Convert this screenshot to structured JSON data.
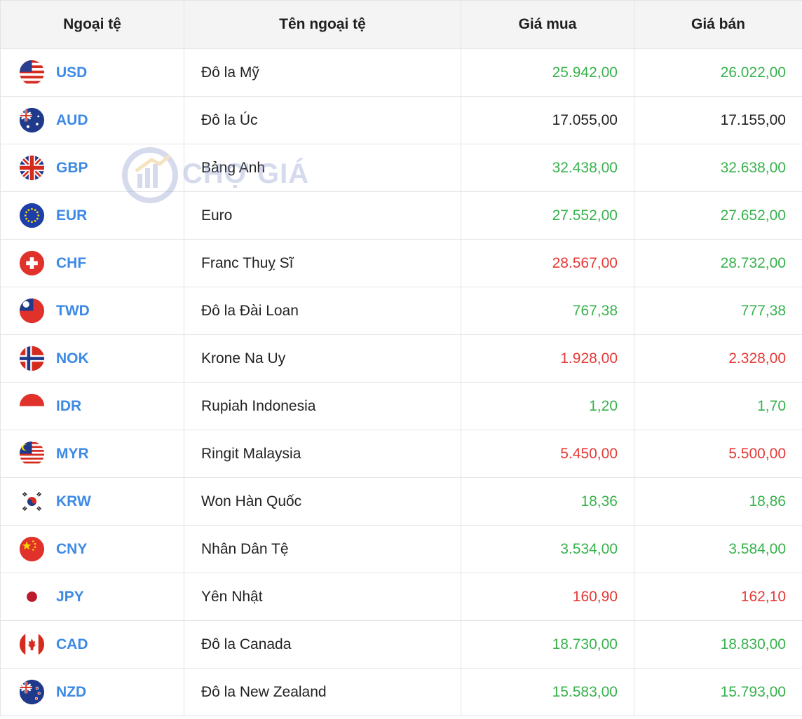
{
  "header": {
    "col_code": "Ngoại tệ",
    "col_name": "Tên ngoại tệ",
    "col_buy": "Giá mua",
    "col_sell": "Giá bán"
  },
  "watermark": {
    "text": "CHỢ GIÁ"
  },
  "status_colors": {
    "up": "#37b24d",
    "down": "#e53935",
    "neutral": "#222222",
    "code": "#3d8ae6"
  },
  "rows": [
    {
      "code": "USD",
      "name": "Đô la Mỹ",
      "buy": "25.942,00",
      "sell": "26.022,00",
      "buy_status": "green",
      "sell_status": "green",
      "flag": "us-flag-icon"
    },
    {
      "code": "AUD",
      "name": "Đô la Úc",
      "buy": "17.055,00",
      "sell": "17.155,00",
      "buy_status": "black",
      "sell_status": "black",
      "flag": "au-flag-icon"
    },
    {
      "code": "GBP",
      "name": "Bảng Anh",
      "buy": "32.438,00",
      "sell": "32.638,00",
      "buy_status": "green",
      "sell_status": "green",
      "flag": "gb-flag-icon"
    },
    {
      "code": "EUR",
      "name": "Euro",
      "buy": "27.552,00",
      "sell": "27.652,00",
      "buy_status": "green",
      "sell_status": "green",
      "flag": "eu-flag-icon"
    },
    {
      "code": "CHF",
      "name": "Franc Thuỵ Sĩ",
      "buy": "28.567,00",
      "sell": "28.732,00",
      "buy_status": "red",
      "sell_status": "green",
      "flag": "ch-flag-icon"
    },
    {
      "code": "TWD",
      "name": "Đô la Đài Loan",
      "buy": "767,38",
      "sell": "777,38",
      "buy_status": "green",
      "sell_status": "green",
      "flag": "tw-flag-icon"
    },
    {
      "code": "NOK",
      "name": "Krone Na Uy",
      "buy": "1.928,00",
      "sell": "2.328,00",
      "buy_status": "red",
      "sell_status": "red",
      "flag": "no-flag-icon"
    },
    {
      "code": "IDR",
      "name": "Rupiah Indonesia",
      "buy": "1,20",
      "sell": "1,70",
      "buy_status": "green",
      "sell_status": "green",
      "flag": "id-flag-icon"
    },
    {
      "code": "MYR",
      "name": "Ringit Malaysia",
      "buy": "5.450,00",
      "sell": "5.500,00",
      "buy_status": "red",
      "sell_status": "red",
      "flag": "my-flag-icon"
    },
    {
      "code": "KRW",
      "name": "Won Hàn Quốc",
      "buy": "18,36",
      "sell": "18,86",
      "buy_status": "green",
      "sell_status": "green",
      "flag": "kr-flag-icon"
    },
    {
      "code": "CNY",
      "name": "Nhân Dân Tệ",
      "buy": "3.534,00",
      "sell": "3.584,00",
      "buy_status": "green",
      "sell_status": "green",
      "flag": "cn-flag-icon"
    },
    {
      "code": "JPY",
      "name": "Yên Nhật",
      "buy": "160,90",
      "sell": "162,10",
      "buy_status": "red",
      "sell_status": "red",
      "flag": "jp-flag-icon"
    },
    {
      "code": "CAD",
      "name": "Đô la Canada",
      "buy": "18.730,00",
      "sell": "18.830,00",
      "buy_status": "green",
      "sell_status": "green",
      "flag": "ca-flag-icon"
    },
    {
      "code": "NZD",
      "name": "Đô la New Zealand",
      "buy": "15.583,00",
      "sell": "15.793,00",
      "buy_status": "green",
      "sell_status": "green",
      "flag": "nz-flag-icon"
    }
  ]
}
